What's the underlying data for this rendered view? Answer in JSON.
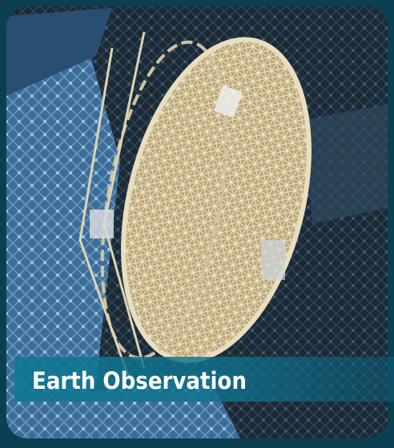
{
  "caption": {
    "label": "Earth Observation"
  }
}
